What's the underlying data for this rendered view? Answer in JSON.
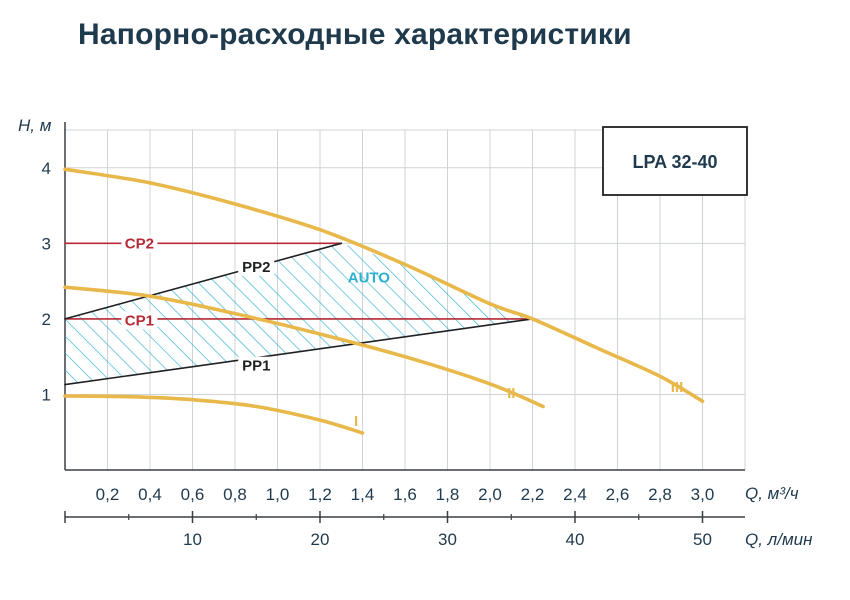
{
  "page": {
    "title": "Напорно-расходные характеристики"
  },
  "chart_data": {
    "type": "line",
    "title": "Напорно-расходные характеристики",
    "model": "LPA 32-40",
    "xlabel": "Q, м³/ч",
    "xlabel_secondary": "Q, л/мин",
    "ylabel": "H, м",
    "xlim": [
      0,
      3.2
    ],
    "ylim": [
      0,
      4.5
    ],
    "x_ticks": [
      "0,2",
      "0,4",
      "0,6",
      "0,8",
      "1,0",
      "1,2",
      "1,4",
      "1,6",
      "1,8",
      "2,0",
      "2,2",
      "2,4",
      "2,6",
      "2,8",
      "3,0"
    ],
    "x_tick_values": [
      0.2,
      0.4,
      0.6,
      0.8,
      1.0,
      1.2,
      1.4,
      1.6,
      1.8,
      2.0,
      2.2,
      2.4,
      2.6,
      2.8,
      3.0
    ],
    "y_ticks": [
      "1",
      "2",
      "3",
      "4"
    ],
    "y_tick_values": [
      1,
      2,
      3,
      4
    ],
    "x2_ticks": [
      "10",
      "20",
      "30",
      "40",
      "50"
    ],
    "x2_tick_values": [
      10,
      20,
      30,
      40,
      50
    ],
    "grid": true,
    "colors": {
      "curve": "#e8b84a",
      "cp": "#b52a35",
      "pp": "#1e2022",
      "auto": "#2fb0d0",
      "text": "#1f3a4d"
    },
    "series": [
      {
        "name": "I",
        "type": "curve",
        "points": [
          [
            0,
            0.98
          ],
          [
            0.3,
            0.97
          ],
          [
            0.6,
            0.93
          ],
          [
            0.9,
            0.84
          ],
          [
            1.2,
            0.66
          ],
          [
            1.4,
            0.49
          ]
        ],
        "label_at": [
          1.37,
          0.65
        ]
      },
      {
        "name": "II",
        "type": "curve",
        "points": [
          [
            0,
            2.42
          ],
          [
            0.4,
            2.3
          ],
          [
            0.8,
            2.07
          ],
          [
            1.2,
            1.8
          ],
          [
            1.6,
            1.5
          ],
          [
            2.0,
            1.14
          ],
          [
            2.25,
            0.84
          ]
        ],
        "label_at": [
          2.1,
          1.02
        ]
      },
      {
        "name": "III",
        "type": "curve",
        "points": [
          [
            0,
            3.98
          ],
          [
            0.4,
            3.8
          ],
          [
            0.8,
            3.52
          ],
          [
            1.2,
            3.18
          ],
          [
            1.6,
            2.72
          ],
          [
            2.0,
            2.2
          ],
          [
            2.2,
            2.0
          ],
          [
            2.5,
            1.62
          ],
          [
            2.8,
            1.24
          ],
          [
            3.0,
            0.91
          ]
        ],
        "label_at": [
          2.88,
          1.1
        ]
      },
      {
        "name": "CP2",
        "type": "cp",
        "points": [
          [
            0,
            3.0
          ],
          [
            1.3,
            3.0
          ]
        ],
        "label_at": [
          0.35,
          3.0
        ]
      },
      {
        "name": "CP1",
        "type": "cp",
        "points": [
          [
            0,
            2.0
          ],
          [
            2.2,
            2.0
          ]
        ],
        "label_at": [
          0.35,
          1.98
        ]
      },
      {
        "name": "PP2",
        "type": "pp",
        "points": [
          [
            0,
            2.0
          ],
          [
            1.3,
            3.0
          ]
        ],
        "label_at": [
          0.9,
          2.69
        ]
      },
      {
        "name": "PP1",
        "type": "pp",
        "points": [
          [
            0,
            1.13
          ],
          [
            2.2,
            2.0
          ]
        ],
        "label_at": [
          0.9,
          1.38
        ]
      }
    ],
    "auto_region": {
      "name": "AUTO",
      "points": [
        [
          0,
          2.0
        ],
        [
          1.3,
          3.0
        ],
        [
          1.6,
          2.72
        ],
        [
          2.0,
          2.2
        ],
        [
          2.2,
          2.0
        ],
        [
          0,
          1.13
        ]
      ],
      "label_at": [
        1.43,
        2.55
      ]
    }
  }
}
